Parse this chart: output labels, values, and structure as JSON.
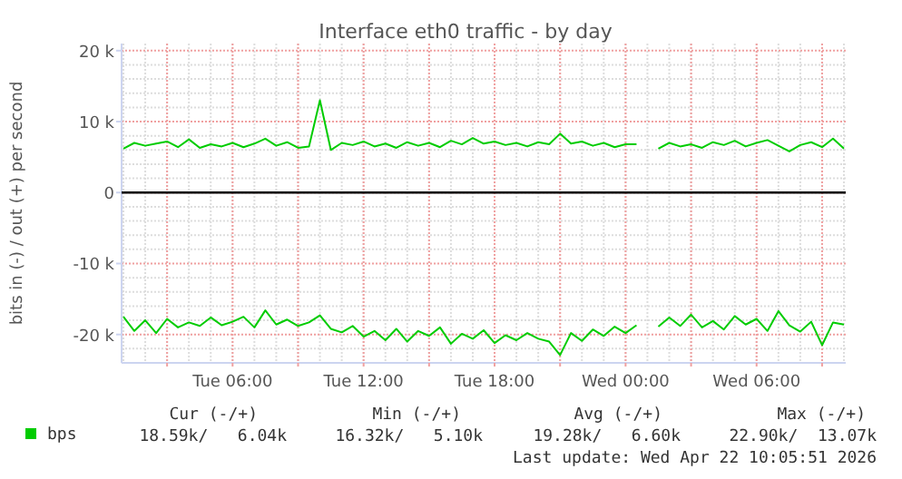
{
  "chart_data": {
    "type": "line",
    "title": "Interface eth0 traffic - by day",
    "ylabel": "bits in (-) / out (+) per second",
    "x": [
      "2026-04-21T01:00",
      "2026-04-21T01:30",
      "2026-04-21T02:00",
      "2026-04-21T02:30",
      "2026-04-21T03:00",
      "2026-04-21T03:30",
      "2026-04-21T04:00",
      "2026-04-21T04:30",
      "2026-04-21T05:00",
      "2026-04-21T05:30",
      "2026-04-21T06:00",
      "2026-04-21T06:30",
      "2026-04-21T07:00",
      "2026-04-21T07:30",
      "2026-04-21T08:00",
      "2026-04-21T08:30",
      "2026-04-21T09:00",
      "2026-04-21T09:30",
      "2026-04-21T10:00",
      "2026-04-21T10:30",
      "2026-04-21T11:00",
      "2026-04-21T11:30",
      "2026-04-21T12:00",
      "2026-04-21T12:30",
      "2026-04-21T13:00",
      "2026-04-21T13:30",
      "2026-04-21T14:00",
      "2026-04-21T14:30",
      "2026-04-21T15:00",
      "2026-04-21T15:30",
      "2026-04-21T16:00",
      "2026-04-21T16:30",
      "2026-04-21T17:00",
      "2026-04-21T17:30",
      "2026-04-21T18:00",
      "2026-04-21T18:30",
      "2026-04-21T19:00",
      "2026-04-21T19:30",
      "2026-04-21T20:00",
      "2026-04-21T20:30",
      "2026-04-21T21:00",
      "2026-04-21T21:30",
      "2026-04-21T22:00",
      "2026-04-21T22:30",
      "2026-04-21T23:00",
      "2026-04-21T23:30",
      "2026-04-22T00:00",
      "2026-04-22T00:30",
      "2026-04-22T01:00",
      "2026-04-22T01:30",
      "2026-04-22T02:00",
      "2026-04-22T02:30",
      "2026-04-22T03:00",
      "2026-04-22T03:30",
      "2026-04-22T04:00",
      "2026-04-22T04:30",
      "2026-04-22T05:00",
      "2026-04-22T05:30",
      "2026-04-22T06:00",
      "2026-04-22T06:30",
      "2026-04-22T07:00",
      "2026-04-22T07:30",
      "2026-04-22T08:00",
      "2026-04-22T08:30",
      "2026-04-22T09:00",
      "2026-04-22T09:30",
      "2026-04-22T10:00"
    ],
    "series": [
      {
        "name": "bps",
        "color": "#00cc00",
        "values": [
          6200,
          7000,
          6600,
          6900,
          7200,
          6400,
          7500,
          6300,
          6800,
          6500,
          7000,
          6400,
          6900,
          7600,
          6600,
          7100,
          6300,
          6500,
          13000,
          6000,
          7000,
          6700,
          7200,
          6500,
          6900,
          6300,
          7100,
          6600,
          7000,
          6400,
          7300,
          6800,
          7700,
          6900,
          7200,
          6700,
          7000,
          6500,
          7100,
          6800,
          8300,
          6900,
          7200,
          6600,
          7000,
          6400,
          6800,
          6800,
          null,
          6200,
          7000,
          6500,
          6800,
          6300,
          7100,
          6700,
          7300,
          6500,
          7000,
          7400,
          6600,
          5800,
          6700,
          7100,
          6400,
          7600,
          6200
        ]
      },
      {
        "color": "#00cc00",
        "values": [
          -17500,
          -19500,
          -18000,
          -19800,
          -17800,
          -19000,
          -18300,
          -18800,
          -17600,
          -18700,
          -18200,
          -17500,
          -19000,
          -16600,
          -18600,
          -17900,
          -18800,
          -18300,
          -17300,
          -19200,
          -19700,
          -18800,
          -20300,
          -19500,
          -20800,
          -19200,
          -21000,
          -19500,
          -20200,
          -19000,
          -21300,
          -19900,
          -20600,
          -19400,
          -21200,
          -20100,
          -20800,
          -19800,
          -20600,
          -21000,
          -22900,
          -19800,
          -20900,
          -19300,
          -20200,
          -18900,
          -19800,
          -18700,
          null,
          -18900,
          -17600,
          -18800,
          -17200,
          -19000,
          -18100,
          -19300,
          -17400,
          -18600,
          -17800,
          -19500,
          -16700,
          -18700,
          -19600,
          -18200,
          -21500,
          -18300,
          -18600
        ]
      }
    ],
    "xlim": [
      "2026-04-21T00:55",
      "2026-04-22T10:05"
    ],
    "xticks": [
      {
        "value": "2026-04-21T03:00",
        "label": null
      },
      {
        "value": "2026-04-21T06:00",
        "label": "Tue 06:00"
      },
      {
        "value": "2026-04-21T09:00",
        "label": null
      },
      {
        "value": "2026-04-21T12:00",
        "label": "Tue 12:00"
      },
      {
        "value": "2026-04-21T15:00",
        "label": null
      },
      {
        "value": "2026-04-21T18:00",
        "label": "Tue 18:00"
      },
      {
        "value": "2026-04-21T21:00",
        "label": null
      },
      {
        "value": "2026-04-22T00:00",
        "label": "Wed 00:00"
      },
      {
        "value": "2026-04-22T03:00",
        "label": null
      },
      {
        "value": "2026-04-22T06:00",
        "label": "Wed 06:00"
      },
      {
        "value": "2026-04-22T09:00",
        "label": null
      }
    ],
    "ylim": [
      -24000,
      21000
    ],
    "yticks": [
      {
        "value": -20000,
        "label": "-20 k"
      },
      {
        "value": -10000,
        "label": "-10 k"
      },
      0,
      {
        "value": 10000,
        "label": "10 k"
      },
      {
        "value": 20000,
        "label": "20 k"
      }
    ],
    "ref_lines": [
      {
        "axis": "y",
        "value": 0,
        "color": "#000000"
      }
    ],
    "grid": true,
    "legend": "bottom left",
    "line_style": "solid",
    "marker": "none",
    "annotations": [
      "Cur (-/+)",
      "Min (-/+)",
      "Avg (-/+)",
      "Max (-/+)",
      "18.59k/   6.04k",
      "16.32k/   5.10k",
      "19.28k/   6.60k",
      "22.90k/  13.07k",
      "Last update: Wed Apr 22 10:05:51 2026"
    ]
  }
}
